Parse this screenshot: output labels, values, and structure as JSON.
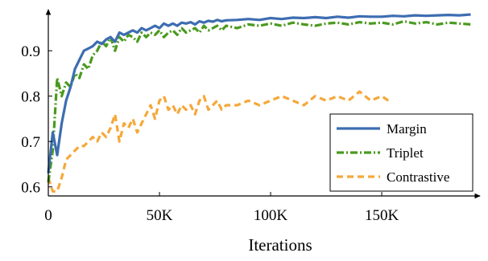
{
  "chart_data": {
    "type": "line",
    "title": "",
    "xlabel": "Iterations",
    "ylabel": "",
    "xlim": [
      0,
      192000
    ],
    "ylim": [
      0.58,
      0.98
    ],
    "x_ticks": [
      0,
      50000,
      100000,
      150000
    ],
    "x_tick_labels": [
      "0",
      "50K",
      "100K",
      "150K"
    ],
    "y_ticks": [
      0.6,
      0.7,
      0.8,
      0.9
    ],
    "y_tick_labels": [
      "0.6",
      "0.7",
      "0.8",
      "0.9"
    ],
    "grid": false,
    "legend_position": "bottom-right",
    "series": [
      {
        "name": "Margin",
        "color": "#3d6db1",
        "style": "solid",
        "x": [
          0,
          2000,
          4000,
          6000,
          8000,
          10000,
          12000,
          14000,
          16000,
          18000,
          20000,
          22000,
          24000,
          26000,
          28000,
          30000,
          32000,
          34000,
          36000,
          38000,
          40000,
          42000,
          44000,
          46000,
          48000,
          50000,
          52000,
          54000,
          56000,
          58000,
          60000,
          62000,
          64000,
          66000,
          68000,
          70000,
          72000,
          74000,
          76000,
          78000,
          80000,
          85000,
          90000,
          95000,
          100000,
          105000,
          110000,
          115000,
          120000,
          125000,
          130000,
          135000,
          140000,
          145000,
          150000,
          155000,
          160000,
          165000,
          170000,
          175000,
          180000,
          185000,
          190000
        ],
        "y": [
          0.63,
          0.72,
          0.67,
          0.74,
          0.79,
          0.82,
          0.86,
          0.88,
          0.9,
          0.905,
          0.91,
          0.92,
          0.915,
          0.925,
          0.93,
          0.92,
          0.94,
          0.935,
          0.94,
          0.945,
          0.94,
          0.95,
          0.945,
          0.95,
          0.955,
          0.95,
          0.96,
          0.955,
          0.96,
          0.955,
          0.962,
          0.96,
          0.963,
          0.958,
          0.965,
          0.962,
          0.966,
          0.964,
          0.968,
          0.965,
          0.967,
          0.968,
          0.97,
          0.968,
          0.972,
          0.97,
          0.973,
          0.972,
          0.974,
          0.972,
          0.975,
          0.973,
          0.976,
          0.975,
          0.975,
          0.977,
          0.976,
          0.978,
          0.977,
          0.978,
          0.979,
          0.978,
          0.98
        ]
      },
      {
        "name": "Triplet",
        "color": "#4a9a1f",
        "style": "dash-dot",
        "x": [
          0,
          2000,
          4000,
          6000,
          8000,
          10000,
          12000,
          14000,
          16000,
          18000,
          20000,
          22000,
          24000,
          26000,
          28000,
          30000,
          32000,
          34000,
          36000,
          38000,
          40000,
          42000,
          44000,
          46000,
          48000,
          50000,
          52000,
          54000,
          56000,
          58000,
          60000,
          62000,
          64000,
          66000,
          68000,
          70000,
          72000,
          74000,
          76000,
          78000,
          80000,
          85000,
          90000,
          95000,
          100000,
          105000,
          110000,
          115000,
          120000,
          125000,
          130000,
          135000,
          140000,
          145000,
          150000,
          155000,
          160000,
          165000,
          170000,
          175000,
          180000,
          185000,
          190000
        ],
        "y": [
          0.61,
          0.68,
          0.84,
          0.8,
          0.83,
          0.82,
          0.85,
          0.84,
          0.87,
          0.86,
          0.89,
          0.9,
          0.92,
          0.91,
          0.93,
          0.9,
          0.93,
          0.92,
          0.935,
          0.93,
          0.92,
          0.94,
          0.93,
          0.94,
          0.935,
          0.945,
          0.93,
          0.94,
          0.945,
          0.935,
          0.95,
          0.94,
          0.945,
          0.95,
          0.94,
          0.955,
          0.945,
          0.95,
          0.955,
          0.945,
          0.955,
          0.95,
          0.958,
          0.955,
          0.96,
          0.955,
          0.962,
          0.958,
          0.955,
          0.96,
          0.962,
          0.958,
          0.963,
          0.96,
          0.962,
          0.958,
          0.965,
          0.96,
          0.963,
          0.958,
          0.962,
          0.96,
          0.958
        ]
      },
      {
        "name": "Contrastive",
        "color": "#f5a83a",
        "style": "dashed",
        "x": [
          0,
          2000,
          4000,
          6000,
          8000,
          10000,
          12000,
          14000,
          16000,
          18000,
          20000,
          22000,
          24000,
          26000,
          28000,
          30000,
          32000,
          34000,
          36000,
          38000,
          40000,
          42000,
          44000,
          46000,
          48000,
          50000,
          52000,
          54000,
          56000,
          58000,
          60000,
          62000,
          64000,
          66000,
          68000,
          70000,
          72000,
          74000,
          76000,
          78000,
          80000,
          85000,
          90000,
          95000,
          100000,
          105000,
          110000,
          115000,
          120000,
          125000,
          130000,
          135000,
          140000,
          145000,
          150000,
          153000
        ],
        "y": [
          0.62,
          0.59,
          0.59,
          0.62,
          0.66,
          0.67,
          0.68,
          0.69,
          0.69,
          0.7,
          0.71,
          0.7,
          0.72,
          0.71,
          0.73,
          0.76,
          0.7,
          0.74,
          0.73,
          0.75,
          0.72,
          0.74,
          0.76,
          0.78,
          0.75,
          0.79,
          0.8,
          0.77,
          0.78,
          0.76,
          0.78,
          0.77,
          0.78,
          0.76,
          0.79,
          0.8,
          0.77,
          0.78,
          0.79,
          0.77,
          0.78,
          0.78,
          0.79,
          0.78,
          0.79,
          0.8,
          0.79,
          0.78,
          0.8,
          0.79,
          0.8,
          0.79,
          0.81,
          0.79,
          0.8,
          0.79
        ]
      }
    ]
  }
}
